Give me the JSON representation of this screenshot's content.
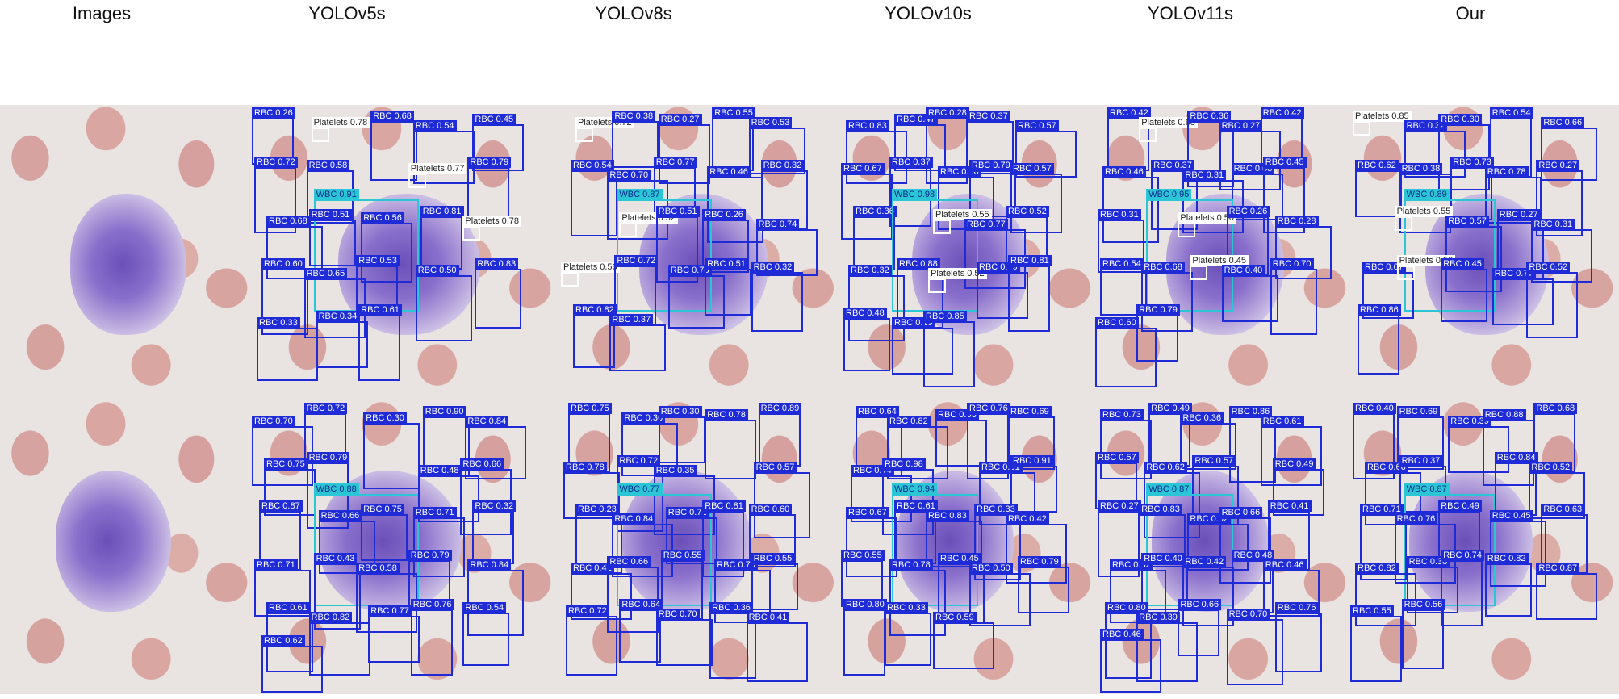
{
  "columns": [
    "Images",
    "YOLOv5s",
    "YOLOv8s",
    "YOLOv10s",
    "YOLOv11s",
    "Our"
  ],
  "colors": {
    "rbc_box": "#1f2bd6",
    "wbc_box": "#2bc6d6",
    "platelet_box": "#ffffff"
  },
  "panels": [
    {
      "row": 0,
      "col": 1,
      "labels": [
        "RBC 0.26",
        "Platelets 0.78",
        "RBC 0.68",
        "RBC 0.54",
        "RBC 0.45",
        "RBC 0.72",
        "RBC 0.58",
        "WBC 0.91",
        "Platelets 0.77",
        "RBC 0.79",
        "RBC 0.68",
        "RBC 0.51",
        "RBC 0.56",
        "RBC 0.81",
        "Platelets 0.78",
        "RBC 0.60",
        "RBC 0.65",
        "RBC 0.53",
        "RBC 0.50",
        "RBC 0.83",
        "RBC 0.33",
        "RBC 0.34",
        "RBC 0.61"
      ]
    },
    {
      "row": 0,
      "col": 2,
      "labels": [
        "Platelets 0.72",
        "RBC 0.38",
        "RBC 0.27",
        "RBC 0.55",
        "RBC 0.53",
        "RBC 0.54",
        "RBC 0.70",
        "RBC 0.77",
        "RBC 0.46",
        "RBC 0.32",
        "WBC 0.87",
        "Platelets 0.52",
        "RBC 0.51",
        "RBC 0.26",
        "RBC 0.74",
        "Platelets 0.56",
        "RBC 0.72",
        "RBC 0.78",
        "RBC 0.51",
        "RBC 0.32",
        "RBC 0.82",
        "RBC 0.37"
      ]
    },
    {
      "row": 0,
      "col": 3,
      "labels": [
        "RBC 0.83",
        "RBC 0.47",
        "RBC 0.28",
        "RBC 0.37",
        "RBC 0.57",
        "RBC 0.67",
        "RBC 0.37",
        "RBC 0.80",
        "RBC 0.79",
        "RBC 0.57",
        "RBC 0.36",
        "WBC 0.98",
        "Platelets 0.55",
        "RBC 0.77",
        "RBC 0.52",
        "RBC 0.32",
        "RBC 0.88",
        "Platelets 0.52",
        "RBC 0.79",
        "RBC 0.81",
        "RBC 0.48",
        "RBC 0.29",
        "RBC 0.85"
      ]
    },
    {
      "row": 0,
      "col": 4,
      "labels": [
        "RBC 0.42",
        "Platelets 0.65",
        "RBC 0.36",
        "RBC 0.27",
        "RBC 0.42",
        "RBC 0.46",
        "RBC 0.37",
        "RBC 0.31",
        "RBC 0.68",
        "RBC 0.45",
        "RBC 0.31",
        "WBC 0.95",
        "Platelets 0.50",
        "RBC 0.26",
        "RBC 0.28",
        "RBC 0.54",
        "RBC 0.68",
        "Platelets 0.45",
        "RBC 0.40",
        "RBC 0.70",
        "RBC 0.60",
        "RBC 0.79"
      ]
    },
    {
      "row": 0,
      "col": 5,
      "labels": [
        "Platelets 0.85",
        "RBC 0.32",
        "RBC 0.30",
        "RBC 0.54",
        "RBC 0.66",
        "RBC 0.62",
        "RBC 0.38",
        "RBC 0.73",
        "RBC 0.78",
        "RBC 0.27",
        "WBC 0.89",
        "Platelets 0.55",
        "RBC 0.57",
        "RBC 0.27",
        "RBC 0.31",
        "RBC 0.67",
        "Platelets 0.50",
        "RBC 0.45",
        "RBC 0.77",
        "RBC 0.52",
        "RBC 0.86"
      ]
    },
    {
      "row": 1,
      "col": 1,
      "labels": [
        "RBC 0.70",
        "RBC 0.72",
        "RBC 0.30",
        "RBC 0.90",
        "RBC 0.84",
        "RBC 0.75",
        "RBC 0.79",
        "WBC 0.88",
        "RBC 0.48",
        "RBC 0.66",
        "RBC 0.87",
        "RBC 0.66",
        "RBC 0.75",
        "RBC 0.71",
        "RBC 0.32",
        "RBC 0.71",
        "RBC 0.43",
        "RBC 0.58",
        "RBC 0.79",
        "RBC 0.84",
        "RBC 0.61",
        "RBC 0.82",
        "RBC 0.77",
        "RBC 0.76",
        "RBC 0.54",
        "RBC 0.62"
      ]
    },
    {
      "row": 1,
      "col": 2,
      "labels": [
        "RBC 0.75",
        "RBC 0.36",
        "RBC 0.30",
        "RBC 0.78",
        "RBC 0.89",
        "RBC 0.78",
        "RBC 0.72",
        "RBC 0.35",
        "WBC 0.77",
        "RBC 0.57",
        "RBC 0.23",
        "RBC 0.84",
        "RBC 0.72",
        "RBC 0.81",
        "RBC 0.60",
        "RBC 0.42",
        "RBC 0.66",
        "RBC 0.55",
        "RBC 0.78",
        "RBC 0.55",
        "RBC 0.72",
        "RBC 0.64",
        "RBC 0.70",
        "RBC 0.36",
        "RBC 0.41"
      ]
    },
    {
      "row": 1,
      "col": 3,
      "labels": [
        "RBC 0.64",
        "RBC 0.82",
        "RBC 0.53",
        "RBC 0.76",
        "RBC 0.69",
        "RBC 0.74",
        "RBC 0.98",
        "WBC 0.94",
        "RBC 0.61",
        "RBC 0.91",
        "RBC 0.67",
        "RBC 0.61",
        "RBC 0.83",
        "RBC 0.33",
        "RBC 0.42",
        "RBC 0.55",
        "RBC 0.78",
        "RBC 0.45",
        "RBC 0.50",
        "RBC 0.79",
        "RBC 0.80",
        "RBC 0.33",
        "RBC 0.59"
      ]
    },
    {
      "row": 1,
      "col": 4,
      "labels": [
        "RBC 0.73",
        "RBC 0.49",
        "RBC 0.36",
        "RBC 0.86",
        "RBC 0.61",
        "RBC 0.57",
        "RBC 0.62",
        "RBC 0.57",
        "WBC 0.87",
        "RBC 0.49",
        "RBC 0.27",
        "RBC 0.83",
        "RBC 0.62",
        "RBC 0.66",
        "RBC 0.41",
        "RBC 0.52",
        "RBC 0.40",
        "RBC 0.42",
        "RBC 0.48",
        "RBC 0.46",
        "RBC 0.80",
        "RBC 0.39",
        "RBC 0.66",
        "RBC 0.70",
        "RBC 0.76",
        "RBC 0.46"
      ]
    },
    {
      "row": 1,
      "col": 5,
      "labels": [
        "RBC 0.40",
        "RBC 0.69",
        "RBC 0.39",
        "RBC 0.88",
        "RBC 0.68",
        "RBC 0.66",
        "RBC 0.37",
        "WBC 0.87",
        "RBC 0.84",
        "RBC 0.52",
        "RBC 0.71",
        "RBC 0.76",
        "RBC 0.49",
        "RBC 0.45",
        "RBC 0.63",
        "RBC 0.82",
        "RBC 0.38",
        "RBC 0.74",
        "RBC 0.82",
        "RBC 0.87",
        "RBC 0.55",
        "RBC 0.56"
      ]
    }
  ]
}
